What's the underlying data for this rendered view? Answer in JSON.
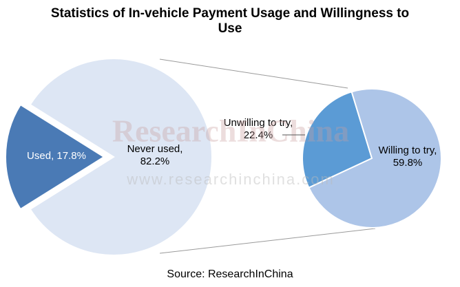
{
  "title": "Statistics of In-vehicle Payment Usage and Willingness to Use",
  "source": "Source: ResearchInChina",
  "watermark": "ResearchInChina",
  "watermark_url": "www.researchinchina.com",
  "chart_data": [
    {
      "type": "pie",
      "values": [
        17.8,
        82.2
      ],
      "value_labels": [
        "Used, 17.8%",
        "Never used, 82.2%"
      ],
      "colors": [
        "#4a7ab5",
        "#dde6f4"
      ],
      "label_colors": [
        "#ffffff",
        "#000000"
      ]
    },
    {
      "type": "pie",
      "values": [
        22.4,
        59.8
      ],
      "value_labels": [
        "Unwilling to try, 22.4%",
        "Willing to try, 59.8%"
      ],
      "colors": [
        "#5b9bd5",
        "#adc5e8"
      ],
      "label_colors": [
        "#000000",
        "#000000"
      ]
    }
  ]
}
